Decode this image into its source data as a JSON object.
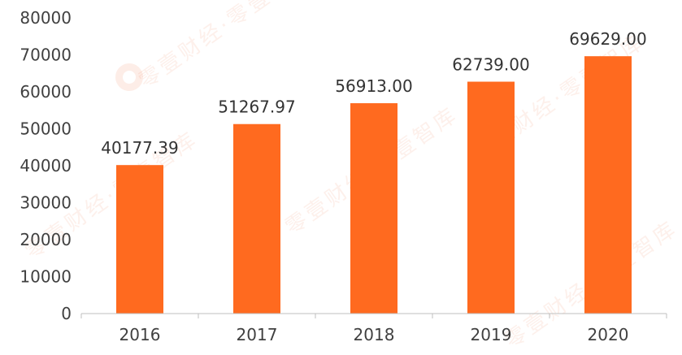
{
  "watermark": {
    "text": "零壹财经·零壹智库"
  },
  "chart_data": {
    "type": "bar",
    "categories": [
      "2016",
      "2017",
      "2018",
      "2019",
      "2020"
    ],
    "values": [
      40177.39,
      51267.97,
      56913.0,
      62739.0,
      69629.0
    ],
    "value_labels": [
      "40177.39",
      "51267.97",
      "56913.00",
      "62739.00",
      "69629.00"
    ],
    "title": "",
    "xlabel": "",
    "ylabel": "",
    "ylim": [
      0,
      80000
    ],
    "yticks": [
      "0",
      "10000",
      "20000",
      "30000",
      "40000",
      "50000",
      "60000",
      "70000",
      "80000"
    ],
    "grid": false,
    "legend": "none",
    "bar_color": "#FF6A1F"
  }
}
